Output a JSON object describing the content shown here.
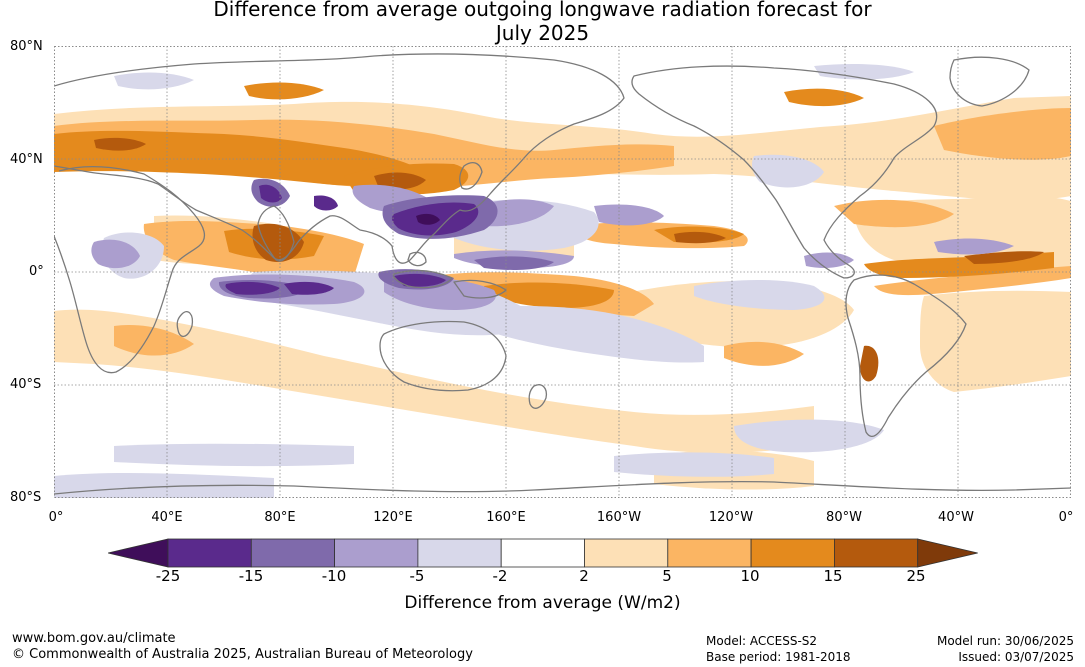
{
  "title_line1": "Difference from average outgoing longwave radiation forecast for",
  "title_line2": "July 2025",
  "map": {
    "lat_labels": [
      "80°N",
      "40°N",
      "0°",
      "40°S",
      "80°S"
    ],
    "lon_labels": [
      "0°",
      "40°E",
      "80°E",
      "120°E",
      "160°E",
      "160°W",
      "120°W",
      "80°W",
      "40°W",
      "0°"
    ],
    "colors": {
      "neg25": "#3f0e5a",
      "neg15": "#5a2a8c",
      "neg10": "#7f6aab",
      "neg5": "#ab9ece",
      "neg2": "#d8d8ea",
      "zero": "#ffffff",
      "pos2": "#fde0b6",
      "pos5": "#fbb563",
      "pos10": "#e48a1d",
      "pos15": "#b45a0d",
      "pos25": "#7f3a0a",
      "coast": "#7a7a7a",
      "grid": "#8a8a8a"
    }
  },
  "colorbar": {
    "tick_labels": [
      "-25",
      "-15",
      "-10",
      "-5",
      "-2",
      "2",
      "5",
      "10",
      "15",
      "25"
    ],
    "colors": [
      "#3f0e5a",
      "#5a2a8c",
      "#7f6aab",
      "#ab9ece",
      "#d8d8ea",
      "#ffffff",
      "#fde0b6",
      "#fbb563",
      "#e48a1d",
      "#b45a0d",
      "#7f3a0a"
    ],
    "title": "Difference from average (W/m2)"
  },
  "footer": {
    "url": "www.bom.gov.au/climate",
    "copyright": "© Commonwealth of Australia 2025, Australian Bureau of Meteorology",
    "model": "Model: ACCESS-S2",
    "base_period": "Base period: 1981-2018",
    "model_run": "Model run: 30/06/2025",
    "issued": "Issued: 03/07/2025"
  }
}
